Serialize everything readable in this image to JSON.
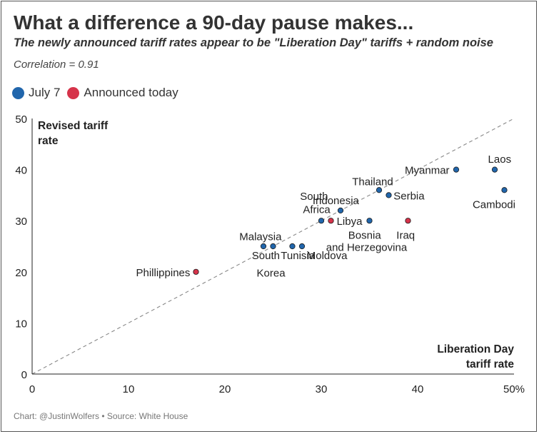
{
  "header": {
    "title": "What a difference a 90-day pause makes...",
    "subtitle": "The newly announced tariff rates appear to be \"Liberation Day\" tariffs + random noise",
    "correlation": "Correlation = 0.91"
  },
  "footer": {
    "credit": "Chart: @JustinWolfers",
    "separator": "•",
    "source": "Source: White House"
  },
  "colors": {
    "july7": "#2166ac",
    "announced": "#d6334a",
    "diagonal": "#888888",
    "axis": "#222222"
  },
  "chart_data": {
    "type": "scatter",
    "xlabel": [
      "Liberation Day",
      "tariff rate"
    ],
    "ylabel": [
      "Revised tariff",
      "rate"
    ],
    "xlim": [
      0,
      50
    ],
    "ylim": [
      0,
      50
    ],
    "xticks": [
      "0",
      "10",
      "20",
      "30",
      "40",
      "50%"
    ],
    "xtick_values": [
      0,
      10,
      20,
      30,
      40,
      50
    ],
    "yticks": [
      "0",
      "10",
      "20",
      "30",
      "40",
      "50"
    ],
    "ytick_values": [
      0,
      10,
      20,
      30,
      40,
      50
    ],
    "reference_line": "y = x",
    "legend_position": "top-left",
    "series": [
      {
        "name": "July 7",
        "points": [
          {
            "label": "Laos",
            "x": 48,
            "y": 40
          },
          {
            "label": "Cambodi",
            "x": 49,
            "y": 36
          },
          {
            "label": "Myanmar",
            "x": 44,
            "y": 40
          },
          {
            "label": "Thailand",
            "x": 36,
            "y": 36
          },
          {
            "label": "Serbia",
            "x": 37,
            "y": 35
          },
          {
            "label": "Indonesia",
            "x": 32,
            "y": 32
          },
          {
            "label": "Bosnia",
            "x": 35,
            "y": 30
          },
          {
            "label": "South Africa",
            "x": 30,
            "y": 30
          },
          {
            "label": "Malaysia",
            "x": 24,
            "y": 25
          },
          {
            "label": "South Korea",
            "x": 25,
            "y": 25
          },
          {
            "label": "Tunisia",
            "x": 27,
            "y": 25
          },
          {
            "label": "Moldova",
            "x": 28,
            "y": 25
          }
        ]
      },
      {
        "name": "Announced today",
        "points": [
          {
            "label": "Libya",
            "x": 31,
            "y": 30
          },
          {
            "label": "Iraq",
            "x": 39,
            "y": 30
          },
          {
            "label": "Phillippines",
            "x": 17,
            "y": 20
          }
        ]
      }
    ],
    "point_labels": [
      {
        "text": "Laos",
        "x": 47.3,
        "y": 42.2,
        "anchor": "start"
      },
      {
        "text": "Cambodi",
        "x": 45.7,
        "y": 33.3,
        "anchor": "start"
      },
      {
        "text": "Myanmar",
        "x": 43.3,
        "y": 40,
        "anchor": "end"
      },
      {
        "text": "Thailand",
        "x": 33.2,
        "y": 37.8,
        "anchor": "start"
      },
      {
        "text": "Serbia",
        "x": 37.5,
        "y": 35,
        "anchor": "start"
      },
      {
        "text": "Indonesia",
        "x": 29.1,
        "y": 34.1,
        "anchor": "start"
      },
      {
        "text": "South",
        "x": 27.8,
        "y": 34.9,
        "anchor": "start"
      },
      {
        "text": "Africa",
        "x": 28.1,
        "y": 32.3,
        "anchor": "start"
      },
      {
        "text": "Libya",
        "x": 31.6,
        "y": 30,
        "anchor": "start"
      },
      {
        "text": "Bosnia",
        "x": 32.8,
        "y": 27.3,
        "anchor": "start"
      },
      {
        "text": "and Herzegovina",
        "x": 30.5,
        "y": 24.9,
        "anchor": "start"
      },
      {
        "text": "Iraq",
        "x": 37.8,
        "y": 27.3,
        "anchor": "start"
      },
      {
        "text": "Malaysia",
        "x": 21.5,
        "y": 27.0,
        "anchor": "start"
      },
      {
        "text": "South",
        "x": 22.8,
        "y": 23.3,
        "anchor": "start"
      },
      {
        "text": "Korea",
        "x": 23.3,
        "y": 19.9,
        "anchor": "start"
      },
      {
        "text": "Tunisia",
        "x": 25.8,
        "y": 23.3,
        "anchor": "start"
      },
      {
        "text": "Moldova",
        "x": 28.5,
        "y": 23.3,
        "anchor": "start"
      },
      {
        "text": "Phillippines",
        "x": 16.4,
        "y": 20,
        "anchor": "end"
      }
    ]
  }
}
